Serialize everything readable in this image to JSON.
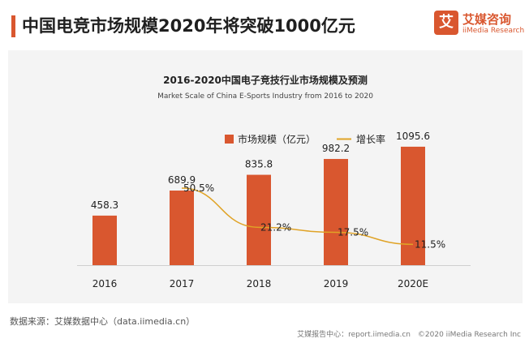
{
  "header": {
    "title": "中国电竞市场规模2020年将突破1000亿元"
  },
  "logo": {
    "mark": "艾",
    "name_cn": "艾媒咨询",
    "name_en": "iiMedia Research"
  },
  "footer": {
    "source": "数据来源：艾媒数据中心（data.iimedia.cn）",
    "platform": "艾媒报告中心：report.iimedia.cn",
    "copyright": "©2020  iiMedia Research  Inc"
  },
  "colors": {
    "bar": "#d9572f",
    "line": "#e0a326",
    "accent": "#d9572f"
  },
  "chart_data": {
    "type": "bar",
    "title": "2016-2020中国电子竞技行业市场规模及预测",
    "subtitle": "Market Scale of China E-Sports Industry from 2016 to 2020",
    "categories": [
      "2016",
      "2017",
      "2018",
      "2019",
      "2020E"
    ],
    "series": [
      {
        "name": "市场规模（亿元）",
        "type": "bar",
        "values": [
          458.3,
          689.9,
          835.8,
          982.2,
          1095.6
        ],
        "labels": [
          "458.3",
          "689.9",
          "835.8",
          "982.2",
          "1095.6"
        ]
      },
      {
        "name": "增长率",
        "type": "line",
        "values": [
          null,
          50.5,
          21.2,
          17.5,
          11.5
        ],
        "labels": [
          "",
          "50.5%",
          "21.2%",
          "17.5%",
          "11.5%"
        ]
      }
    ],
    "xlabel": "",
    "ylabel": "",
    "ylim": [
      0,
      1200
    ],
    "y2lim": [
      0,
      100
    ],
    "grid": false,
    "legend": "top-center"
  }
}
